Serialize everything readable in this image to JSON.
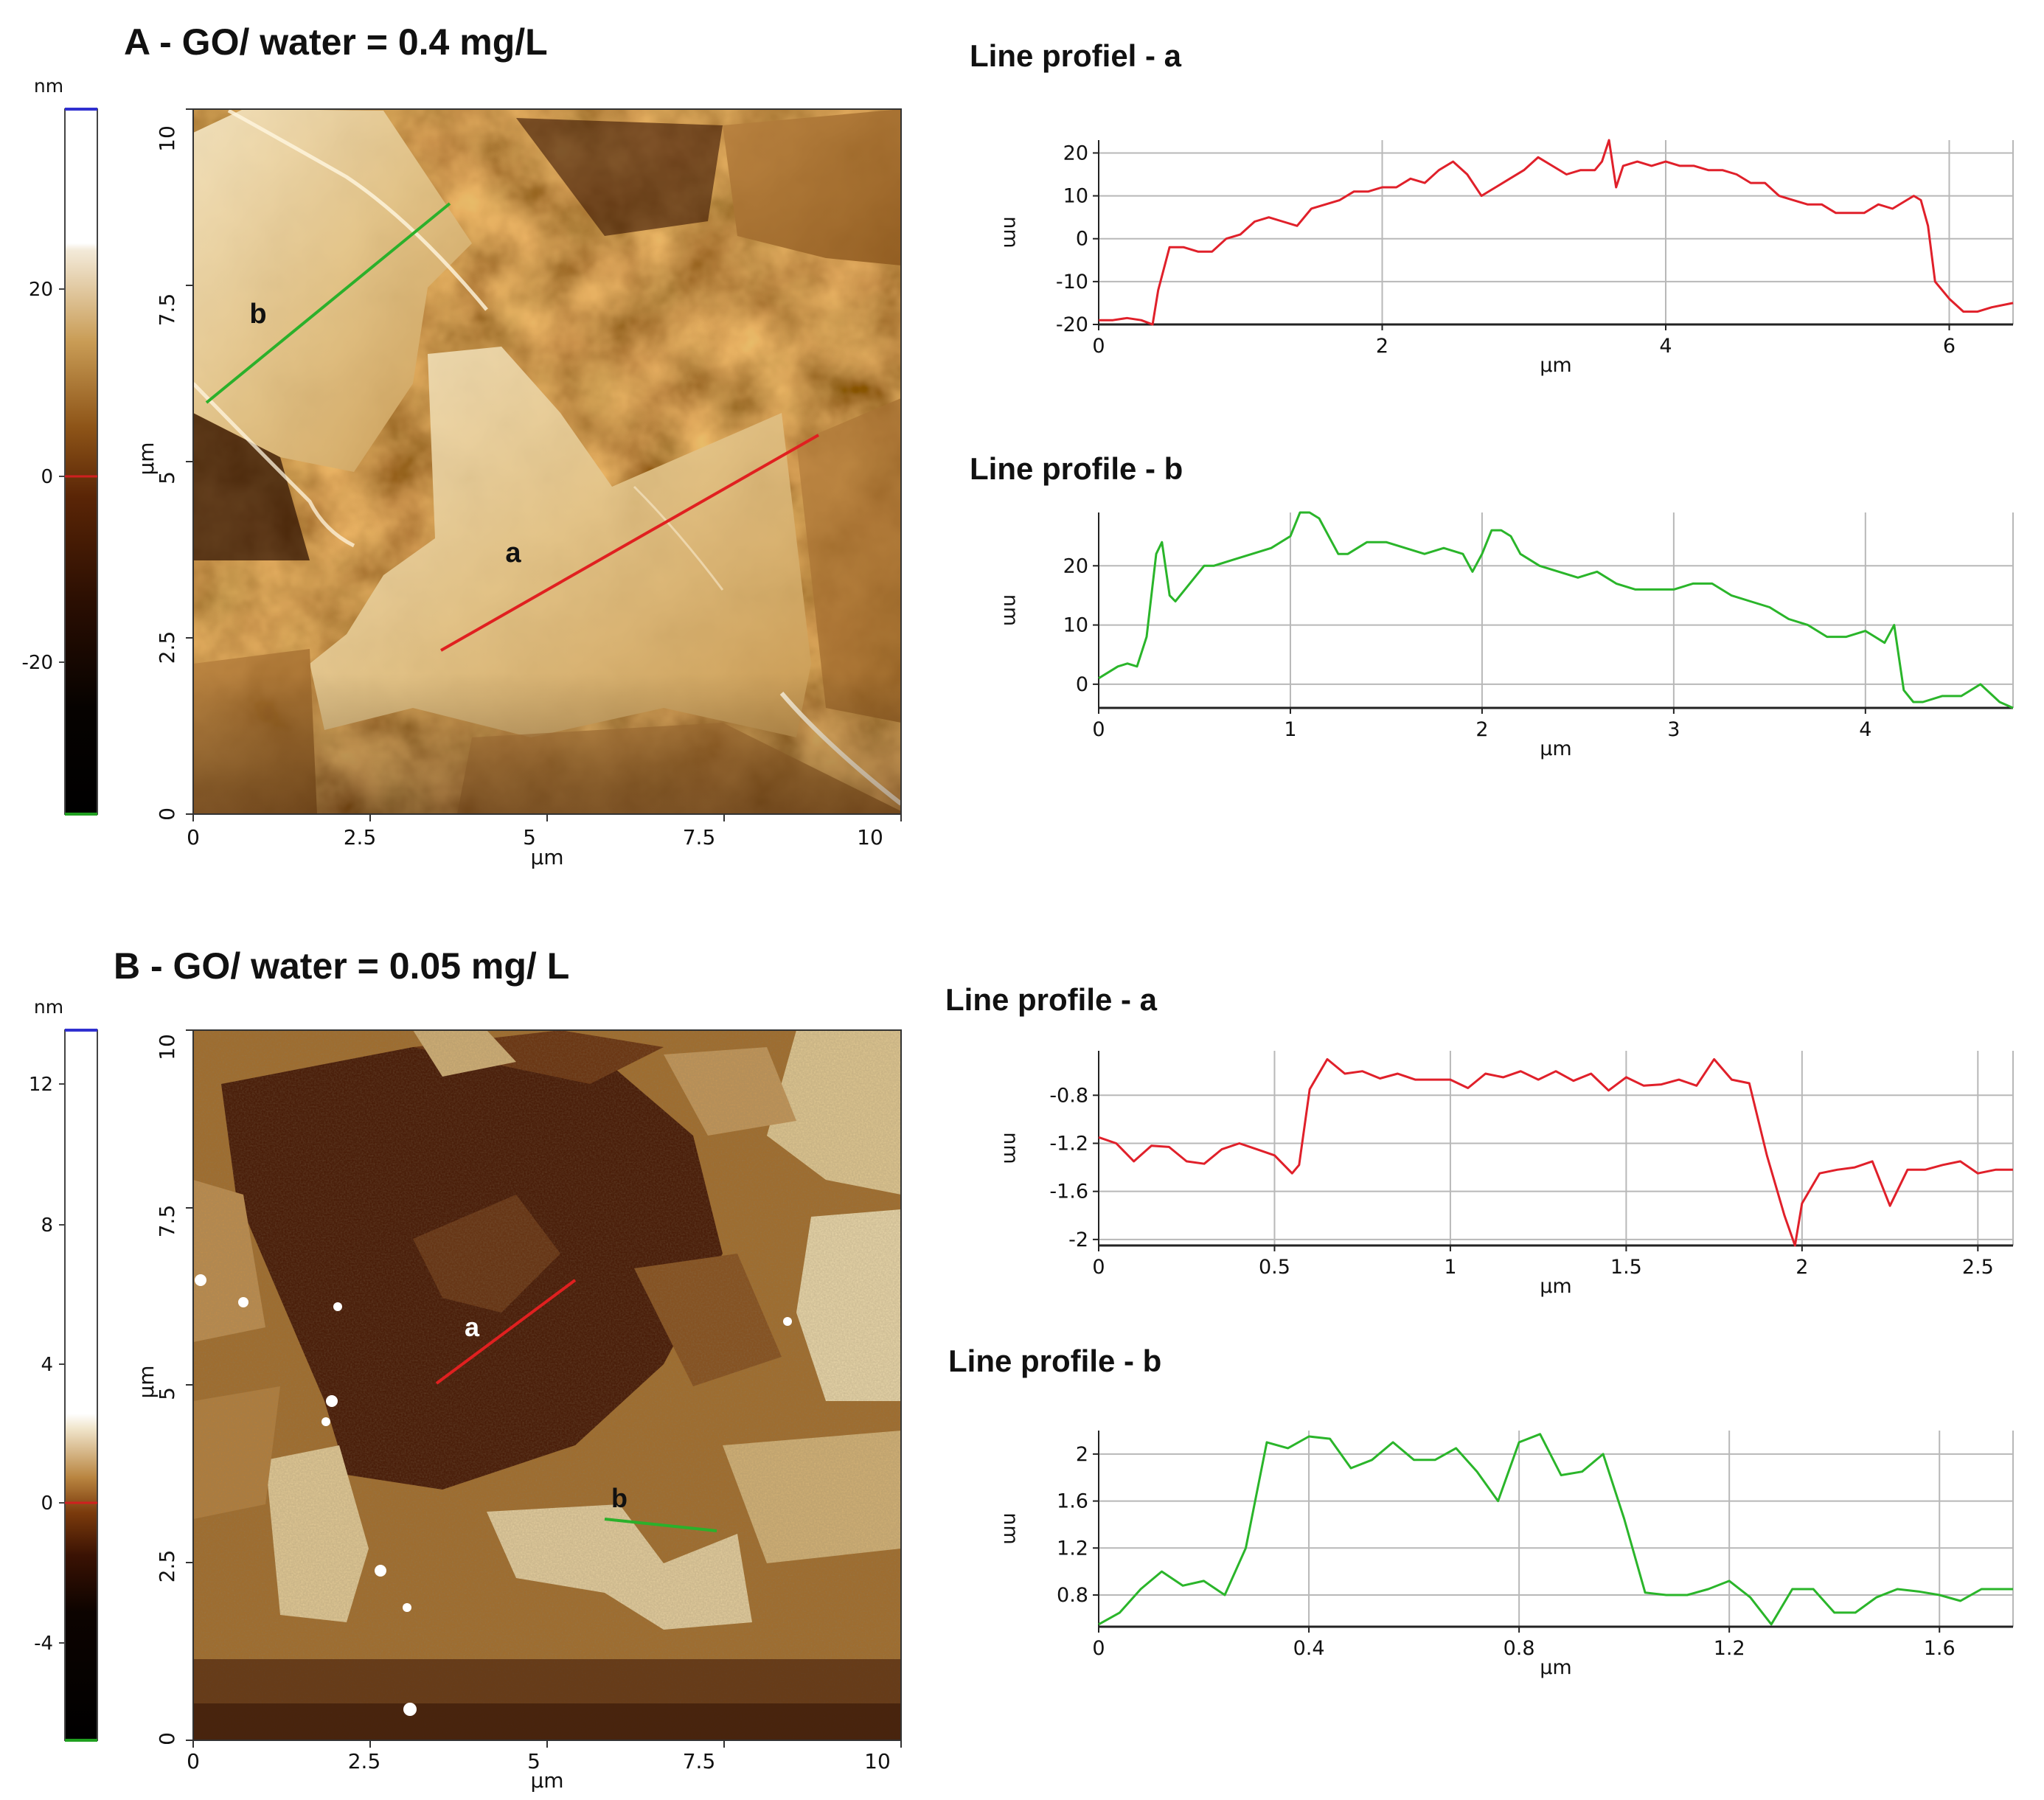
{
  "panels": [
    {
      "id": "A",
      "title": "A  - GO/ water = 0.4 mg/L",
      "image": {
        "xlabel": "µm",
        "ylabel": "µm",
        "x_ticks": [
          "0",
          "2.5",
          "5",
          "7.5",
          "10"
        ],
        "y_ticks": [
          "0",
          "2.5",
          "5",
          "7.5",
          "10"
        ],
        "line_labels": [
          "a",
          "b"
        ],
        "line_colors": [
          "#e02020",
          "#2bb02b"
        ]
      },
      "colorbar": {
        "unit": "nm",
        "ticks": [
          "20",
          "0",
          "-20"
        ]
      }
    },
    {
      "id": "B",
      "title": "B  - GO/ water = 0.05 mg/ L",
      "image": {
        "xlabel": "µm",
        "ylabel": "µm",
        "x_ticks": [
          "0",
          "2.5",
          "5",
          "7.5",
          "10"
        ],
        "y_ticks": [
          "0",
          "2.5",
          "5",
          "7.5",
          "10"
        ],
        "line_labels": [
          "a",
          "b"
        ],
        "line_colors": [
          "#e02020",
          "#2bb02b"
        ]
      },
      "colorbar": {
        "unit": "nm",
        "ticks": [
          "12",
          "8",
          "4",
          "0",
          "-4"
        ]
      }
    }
  ],
  "chart_data": [
    {
      "type": "line",
      "title": "Line profiel - a",
      "xlabel": "µm",
      "ylabel": "nm",
      "xlim": [
        0,
        6.45
      ],
      "ylim": [
        -20,
        23
      ],
      "x_ticks": [
        0,
        2,
        4,
        6
      ],
      "y_ticks": [
        20,
        10,
        0,
        -10,
        -20
      ],
      "grid": true,
      "color": "#e0202a",
      "series": [
        {
          "x": [
            0,
            0.1,
            0.2,
            0.3,
            0.38,
            0.42,
            0.5,
            0.6,
            0.7,
            0.8,
            0.9,
            1.0,
            1.1,
            1.2,
            1.3,
            1.4,
            1.5,
            1.6,
            1.7,
            1.8,
            1.9,
            2.0,
            2.1,
            2.2,
            2.3,
            2.4,
            2.5,
            2.6,
            2.7,
            2.8,
            2.9,
            3.0,
            3.1,
            3.2,
            3.3,
            3.4,
            3.5,
            3.55,
            3.6,
            3.65,
            3.7,
            3.8,
            3.9,
            4.0,
            4.1,
            4.2,
            4.3,
            4.4,
            4.5,
            4.6,
            4.7,
            4.8,
            4.9,
            5.0,
            5.1,
            5.2,
            5.3,
            5.4,
            5.5,
            5.6,
            5.7,
            5.75,
            5.8,
            5.85,
            5.9,
            6.0,
            6.1,
            6.2,
            6.3,
            6.45
          ],
          "y": [
            -19,
            -19,
            -18.5,
            -19,
            -20,
            -12,
            -2,
            -2,
            -3,
            -3,
            0,
            1,
            4,
            5,
            4,
            3,
            7,
            8,
            9,
            11,
            11,
            12,
            12,
            14,
            13,
            16,
            18,
            15,
            10,
            12,
            14,
            16,
            19,
            17,
            15,
            16,
            16,
            18,
            23,
            12,
            17,
            18,
            17,
            18,
            17,
            17,
            16,
            16,
            15,
            13,
            13,
            10,
            9,
            8,
            8,
            6,
            6,
            6,
            8,
            7,
            9,
            10,
            9,
            3,
            -10,
            -14,
            -17,
            -17,
            -16,
            -15
          ]
        }
      ]
    },
    {
      "type": "line",
      "title": "Line profile - b",
      "xlabel": "µm",
      "ylabel": "nm",
      "xlim": [
        0,
        4.77
      ],
      "ylim": [
        -4,
        29
      ],
      "x_ticks": [
        0,
        1,
        2,
        3,
        4
      ],
      "y_ticks": [
        20,
        10,
        0
      ],
      "grid": true,
      "color": "#2ab52a",
      "series": [
        {
          "x": [
            0,
            0.05,
            0.1,
            0.15,
            0.2,
            0.25,
            0.3,
            0.33,
            0.37,
            0.4,
            0.45,
            0.5,
            0.55,
            0.6,
            0.7,
            0.8,
            0.9,
            1.0,
            1.05,
            1.1,
            1.15,
            1.2,
            1.25,
            1.3,
            1.4,
            1.5,
            1.6,
            1.7,
            1.8,
            1.9,
            1.95,
            2.0,
            2.05,
            2.1,
            2.15,
            2.2,
            2.3,
            2.4,
            2.5,
            2.6,
            2.7,
            2.8,
            2.9,
            3.0,
            3.1,
            3.2,
            3.3,
            3.4,
            3.5,
            3.6,
            3.7,
            3.8,
            3.9,
            4.0,
            4.1,
            4.15,
            4.2,
            4.25,
            4.3,
            4.4,
            4.5,
            4.6,
            4.7,
            4.77
          ],
          "y": [
            1,
            2,
            3,
            3.5,
            3,
            8,
            22,
            24,
            15,
            14,
            16,
            18,
            20,
            20,
            21,
            22,
            23,
            25,
            29,
            29,
            28,
            25,
            22,
            22,
            24,
            24,
            23,
            22,
            23,
            22,
            19,
            22,
            26,
            26,
            25,
            22,
            20,
            19,
            18,
            19,
            17,
            16,
            16,
            16,
            17,
            17,
            15,
            14,
            13,
            11,
            10,
            8,
            8,
            9,
            7,
            10,
            -1,
            -3,
            -3,
            -2,
            -2,
            0,
            -3,
            -4
          ]
        }
      ]
    },
    {
      "type": "line",
      "title": "Line profile - a",
      "xlabel": "µm",
      "ylabel": "nm",
      "xlim": [
        0,
        2.6
      ],
      "ylim": [
        -2.05,
        -0.43
      ],
      "x_ticks": [
        0,
        0.5,
        1,
        1.5,
        2,
        2.5
      ],
      "x_tick_labels": [
        "0",
        "0.5",
        "1",
        "1.5",
        "2",
        "2.5"
      ],
      "y_ticks": [
        -0.8,
        -1.2,
        -1.6,
        -2
      ],
      "grid": true,
      "color": "#e0202a",
      "series": [
        {
          "x": [
            0,
            0.05,
            0.1,
            0.15,
            0.2,
            0.25,
            0.3,
            0.35,
            0.4,
            0.45,
            0.5,
            0.55,
            0.57,
            0.6,
            0.65,
            0.7,
            0.75,
            0.8,
            0.85,
            0.9,
            0.95,
            1.0,
            1.05,
            1.1,
            1.15,
            1.2,
            1.25,
            1.3,
            1.35,
            1.4,
            1.45,
            1.5,
            1.55,
            1.6,
            1.65,
            1.7,
            1.75,
            1.8,
            1.85,
            1.9,
            1.95,
            1.98,
            2.0,
            2.05,
            2.1,
            2.15,
            2.2,
            2.25,
            2.3,
            2.35,
            2.4,
            2.45,
            2.5,
            2.55,
            2.6
          ],
          "y": [
            -1.15,
            -1.2,
            -1.35,
            -1.22,
            -1.23,
            -1.35,
            -1.37,
            -1.25,
            -1.2,
            -1.25,
            -1.3,
            -1.45,
            -1.38,
            -0.75,
            -0.5,
            -0.62,
            -0.6,
            -0.66,
            -0.62,
            -0.67,
            -0.67,
            -0.67,
            -0.74,
            -0.62,
            -0.65,
            -0.6,
            -0.67,
            -0.6,
            -0.68,
            -0.62,
            -0.76,
            -0.65,
            -0.72,
            -0.71,
            -0.67,
            -0.72,
            -0.5,
            -0.67,
            -0.7,
            -1.3,
            -1.8,
            -2.1,
            -1.7,
            -1.45,
            -1.42,
            -1.4,
            -1.35,
            -1.72,
            -1.42,
            -1.42,
            -1.38,
            -1.35,
            -1.45,
            -1.42,
            -1.42
          ]
        }
      ]
    },
    {
      "type": "line",
      "title": "Line profile - b",
      "xlabel": "µm",
      "ylabel": "nm",
      "xlim": [
        0,
        1.74
      ],
      "ylim": [
        0.53,
        2.2
      ],
      "x_ticks": [
        0,
        0.4,
        0.8,
        1.2,
        1.6
      ],
      "y_ticks": [
        2,
        1.6,
        1.2,
        0.8
      ],
      "grid": true,
      "color": "#2ab52a",
      "series": [
        {
          "x": [
            0,
            0.04,
            0.08,
            0.12,
            0.16,
            0.2,
            0.24,
            0.28,
            0.32,
            0.36,
            0.4,
            0.44,
            0.48,
            0.52,
            0.56,
            0.6,
            0.64,
            0.68,
            0.72,
            0.76,
            0.8,
            0.84,
            0.88,
            0.92,
            0.96,
            1.0,
            1.04,
            1.08,
            1.12,
            1.16,
            1.2,
            1.24,
            1.28,
            1.32,
            1.36,
            1.4,
            1.44,
            1.48,
            1.52,
            1.56,
            1.6,
            1.64,
            1.68,
            1.72,
            1.74
          ],
          "y": [
            0.55,
            0.65,
            0.85,
            1.0,
            0.88,
            0.92,
            0.8,
            1.2,
            2.1,
            2.05,
            2.15,
            2.13,
            1.88,
            1.95,
            2.1,
            1.95,
            1.95,
            2.05,
            1.85,
            1.6,
            2.1,
            2.17,
            1.82,
            1.85,
            2.0,
            1.45,
            0.82,
            0.8,
            0.8,
            0.85,
            0.92,
            0.78,
            0.55,
            0.85,
            0.85,
            0.65,
            0.65,
            0.78,
            0.85,
            0.83,
            0.8,
            0.75,
            0.85,
            0.85,
            0.85
          ]
        }
      ]
    }
  ]
}
